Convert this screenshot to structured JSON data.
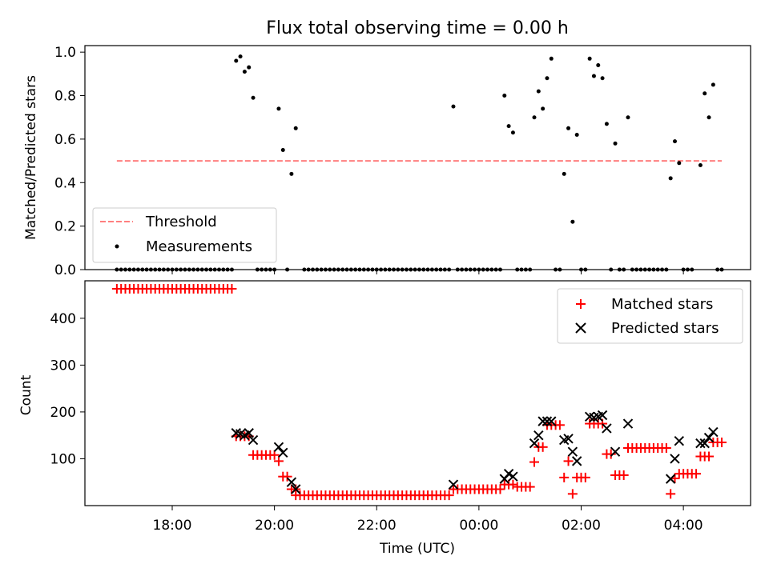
{
  "chart_data": [
    {
      "type": "scatter",
      "title": "Flux total observing time = 0.00 h",
      "ylabel": "Matched/Predicted stars",
      "ylim": [
        0,
        1.03
      ],
      "yticks": [
        0.0,
        0.2,
        0.4,
        0.6,
        0.8,
        1.0
      ],
      "ytick_labels": [
        "0.0",
        "0.2",
        "0.4",
        "0.6",
        "0.8",
        "1.0"
      ],
      "threshold": {
        "name": "Threshold",
        "value": 0.5,
        "x_start": "16:55",
        "x_end": "04:45",
        "color": "#ff7f7f"
      },
      "series": [
        {
          "name": "Measurements",
          "color": "#000000",
          "points": [
            [
              "19:15",
              0.96
            ],
            [
              "19:20",
              0.98
            ],
            [
              "19:25",
              0.91
            ],
            [
              "19:30",
              0.93
            ],
            [
              "19:35",
              0.79
            ],
            [
              "20:05",
              0.74
            ],
            [
              "20:10",
              0.55
            ],
            [
              "20:20",
              0.44
            ],
            [
              "20:25",
              0.65
            ],
            [
              "23:30",
              0.75
            ],
            [
              "00:30",
              0.8
            ],
            [
              "00:35",
              0.66
            ],
            [
              "00:40",
              0.63
            ],
            [
              "01:05",
              0.7
            ],
            [
              "01:10",
              0.82
            ],
            [
              "01:15",
              0.74
            ],
            [
              "01:20",
              0.88
            ],
            [
              "01:25",
              0.97
            ],
            [
              "01:40",
              0.44
            ],
            [
              "01:45",
              0.65
            ],
            [
              "01:50",
              0.22
            ],
            [
              "01:55",
              0.62
            ],
            [
              "02:10",
              0.97
            ],
            [
              "02:15",
              0.89
            ],
            [
              "02:20",
              0.94
            ],
            [
              "02:25",
              0.88
            ],
            [
              "02:30",
              0.67
            ],
            [
              "02:40",
              0.58
            ],
            [
              "02:55",
              0.7
            ],
            [
              "03:45",
              0.42
            ],
            [
              "03:50",
              0.59
            ],
            [
              "03:55",
              0.49
            ],
            [
              "04:20",
              0.48
            ],
            [
              "04:25",
              0.81
            ],
            [
              "04:30",
              0.7
            ],
            [
              "04:35",
              0.85
            ]
          ],
          "zero_points": [
            "16:55",
            "17:00",
            "17:05",
            "17:10",
            "17:15",
            "17:20",
            "17:25",
            "17:30",
            "17:35",
            "17:40",
            "17:45",
            "17:50",
            "17:55",
            "18:00",
            "18:05",
            "18:10",
            "18:15",
            "18:20",
            "18:25",
            "18:30",
            "18:35",
            "18:40",
            "18:45",
            "18:50",
            "18:55",
            "19:00",
            "19:05",
            "19:10",
            "19:40",
            "19:45",
            "19:50",
            "19:55",
            "20:00",
            "20:15",
            "20:35",
            "20:40",
            "20:45",
            "20:50",
            "20:55",
            "21:00",
            "21:05",
            "21:10",
            "21:15",
            "21:20",
            "21:25",
            "21:30",
            "21:35",
            "21:40",
            "21:45",
            "21:50",
            "21:55",
            "22:00",
            "22:05",
            "22:10",
            "22:15",
            "22:20",
            "22:25",
            "22:30",
            "22:35",
            "22:40",
            "22:45",
            "22:50",
            "22:55",
            "23:00",
            "23:05",
            "23:10",
            "23:15",
            "23:20",
            "23:25",
            "23:35",
            "23:40",
            "23:45",
            "23:50",
            "23:55",
            "00:00",
            "00:05",
            "00:10",
            "00:15",
            "00:20",
            "00:25",
            "00:45",
            "00:50",
            "00:55",
            "01:00",
            "01:30",
            "01:35",
            "02:00",
            "02:05",
            "02:35",
            "02:45",
            "02:50",
            "03:00",
            "03:05",
            "03:10",
            "03:15",
            "03:20",
            "03:25",
            "03:30",
            "03:35",
            "03:40",
            "04:00",
            "04:05",
            "04:10",
            "04:40",
            "04:45"
          ]
        }
      ],
      "legend": {
        "position": "lower-left"
      },
      "grid": false
    },
    {
      "type": "scatter",
      "xlabel": "Time (UTC)",
      "ylabel": "Count",
      "ylim": [
        0,
        480
      ],
      "yticks": [
        100,
        200,
        300,
        400
      ],
      "ytick_labels": [
        "100",
        "200",
        "300",
        "400"
      ],
      "xticks": [
        "18:00",
        "20:00",
        "22:00",
        "00:00",
        "02:00",
        "04:00"
      ],
      "series": [
        {
          "name": "Matched stars",
          "marker": "plus",
          "color": "#ff0000",
          "segments": [
            {
              "from": "16:55",
              "to": "19:10",
              "value": 463
            },
            {
              "from": "19:15",
              "to": "19:30",
              "value": 148
            },
            {
              "from": "19:35",
              "to": "20:00",
              "value": 108
            },
            {
              "from": "20:05",
              "to": "20:05",
              "value": 95
            },
            {
              "from": "20:10",
              "to": "20:15",
              "value": 62
            },
            {
              "from": "20:20",
              "to": "20:25",
              "value": 35
            },
            {
              "from": "20:25",
              "to": "23:25",
              "value": 22
            },
            {
              "from": "23:30",
              "to": "00:25",
              "value": 35
            },
            {
              "from": "00:30",
              "to": "00:40",
              "value": 45
            },
            {
              "from": "00:45",
              "to": "01:00",
              "value": 40
            },
            {
              "from": "01:05",
              "to": "01:05",
              "value": 93
            },
            {
              "from": "01:10",
              "to": "01:15",
              "value": 125
            },
            {
              "from": "01:20",
              "to": "01:35",
              "value": 172
            },
            {
              "from": "01:40",
              "to": "01:40",
              "value": 60
            },
            {
              "from": "01:45",
              "to": "01:45",
              "value": 95
            },
            {
              "from": "01:50",
              "to": "01:50",
              "value": 25
            },
            {
              "from": "01:55",
              "to": "02:05",
              "value": 60
            },
            {
              "from": "02:10",
              "to": "02:25",
              "value": 175
            },
            {
              "from": "02:30",
              "to": "02:35",
              "value": 110
            },
            {
              "from": "02:40",
              "to": "02:50",
              "value": 65
            },
            {
              "from": "02:55",
              "to": "03:40",
              "value": 123
            },
            {
              "from": "03:45",
              "to": "03:45",
              "value": 25
            },
            {
              "from": "03:50",
              "to": "03:50",
              "value": 58
            },
            {
              "from": "03:55",
              "to": "04:15",
              "value": 68
            },
            {
              "from": "04:20",
              "to": "04:30",
              "value": 105
            },
            {
              "from": "04:35",
              "to": "04:45",
              "value": 135
            }
          ]
        },
        {
          "name": "Predicted stars",
          "marker": "x",
          "color": "#000000",
          "points": [
            [
              "19:15",
              155
            ],
            [
              "19:20",
              153
            ],
            [
              "19:25",
              150
            ],
            [
              "19:30",
              155
            ],
            [
              "19:35",
              140
            ],
            [
              "20:05",
              125
            ],
            [
              "20:10",
              113
            ],
            [
              "20:20",
              50
            ],
            [
              "20:25",
              35
            ],
            [
              "23:30",
              45
            ],
            [
              "00:30",
              57
            ],
            [
              "00:35",
              68
            ],
            [
              "00:40",
              62
            ],
            [
              "01:05",
              133
            ],
            [
              "01:10",
              150
            ],
            [
              "01:15",
              180
            ],
            [
              "01:20",
              180
            ],
            [
              "01:25",
              180
            ],
            [
              "01:40",
              140
            ],
            [
              "01:45",
              143
            ],
            [
              "01:50",
              115
            ],
            [
              "01:55",
              95
            ],
            [
              "02:10",
              190
            ],
            [
              "02:15",
              188
            ],
            [
              "02:20",
              190
            ],
            [
              "02:25",
              193
            ],
            [
              "02:30",
              165
            ],
            [
              "02:40",
              115
            ],
            [
              "02:55",
              175
            ],
            [
              "03:45",
              57
            ],
            [
              "03:50",
              100
            ],
            [
              "03:55",
              138
            ],
            [
              "04:20",
              133
            ],
            [
              "04:25",
              133
            ],
            [
              "04:30",
              145
            ],
            [
              "04:35",
              157
            ]
          ]
        }
      ],
      "legend": {
        "position": "upper-right"
      },
      "grid": false
    }
  ]
}
